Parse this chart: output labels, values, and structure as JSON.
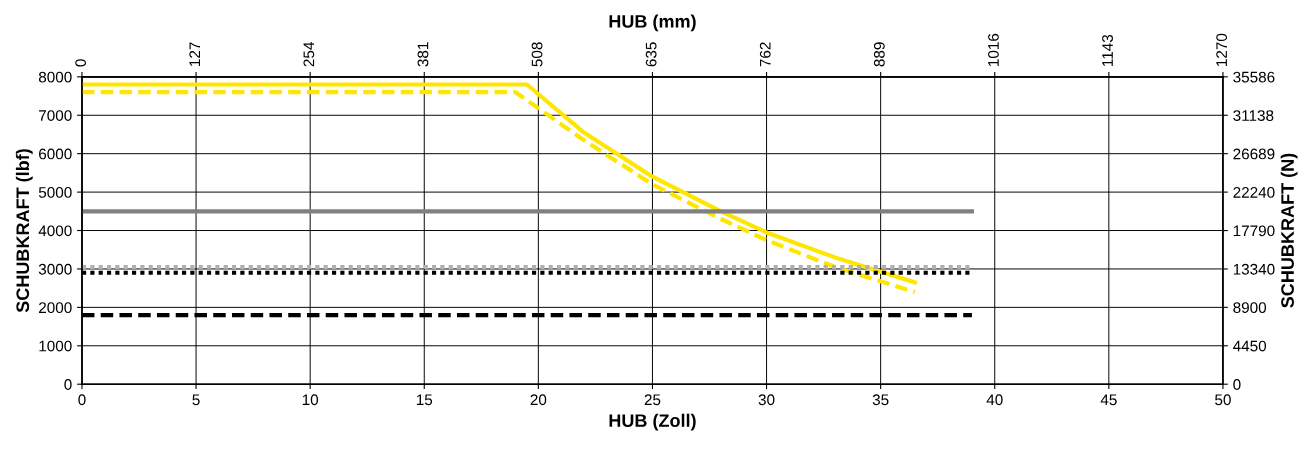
{
  "chart_data": {
    "type": "line",
    "xlabel": "HUB (Zoll)",
    "x2label": "HUB (mm)",
    "ylabel": "SCHUBKRAFT (lbf)",
    "y2label": "SCHUBKRAFT (N)",
    "xlim": [
      0,
      50
    ],
    "xticks": [
      0,
      5,
      10,
      15,
      20,
      25,
      30,
      35,
      40,
      45,
      50
    ],
    "x2lim": [
      0,
      1270
    ],
    "x2ticks": [
      0,
      127,
      254,
      381,
      508,
      635,
      762,
      889,
      1016,
      1143,
      1270
    ],
    "ylim": [
      0,
      8000
    ],
    "yticks": [
      0,
      1000,
      2000,
      3000,
      4000,
      5000,
      6000,
      7000,
      8000
    ],
    "y2lim": [
      0,
      35586
    ],
    "y2ticks": [
      0,
      4450,
      8900,
      13340,
      17790,
      22240,
      26689,
      31138,
      35586
    ],
    "grid": true,
    "marker": "none",
    "series": [
      {
        "color": "#ffe600",
        "line_style": "solid",
        "x": [
          0,
          19.5,
          22,
          25,
          28,
          30,
          33,
          36.5
        ],
        "values": [
          7800,
          7800,
          6550,
          5400,
          4500,
          3950,
          3300,
          2650
        ]
      },
      {
        "color": "#ffe600",
        "line_style": "dashed",
        "x": [
          0,
          19,
          22,
          25,
          28,
          30,
          33,
          36.5
        ],
        "values": [
          7600,
          7600,
          6350,
          5200,
          4300,
          3750,
          3050,
          2400
        ]
      },
      {
        "color": "#808080",
        "line_style": "solid",
        "x": [
          0,
          39
        ],
        "values": [
          4500,
          4500
        ]
      },
      {
        "color": "#b0b0b0",
        "line_style": "dotted",
        "x": [
          0,
          39
        ],
        "values": [
          3050,
          3050
        ]
      },
      {
        "color": "#000000",
        "line_style": "dotted",
        "x": [
          0,
          39
        ],
        "values": [
          2900,
          2900
        ]
      },
      {
        "color": "#000000",
        "line_style": "dashed",
        "x": [
          0,
          39
        ],
        "values": [
          1800,
          1800
        ]
      }
    ]
  }
}
